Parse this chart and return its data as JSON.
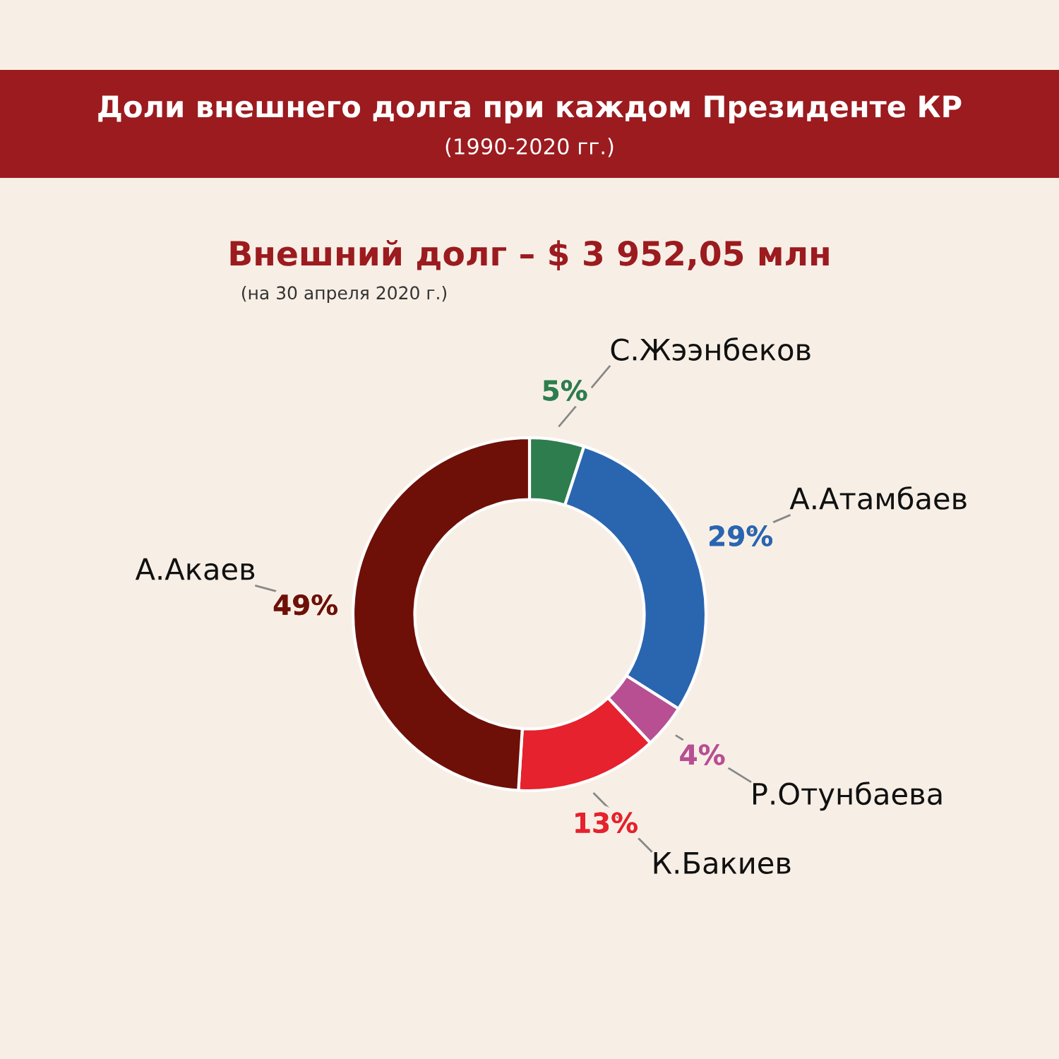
{
  "chart_data": {
    "type": "donut",
    "title": "Доли внешнего долга при каждом Президенте КР",
    "subtitle": "(1990-2020 гг.)",
    "annotations": [
      "Внешний долг – $ 3 952,05 млн",
      "(на 30 апреля 2020 г.)"
    ],
    "categories": [
      "С.Жээнбеков",
      "А.Атамбаев",
      "Р.Отунбаева",
      "К.Бакиев",
      "А.Акаев"
    ],
    "values": [
      5,
      29,
      4,
      13,
      49
    ],
    "colors": [
      "#2e7d4f",
      "#2a65b0",
      "#b84f93",
      "#e5222d",
      "#6e1008"
    ],
    "value_labels": [
      "5%",
      "29%",
      "4%",
      "13%",
      "49%"
    ],
    "legend": false
  }
}
